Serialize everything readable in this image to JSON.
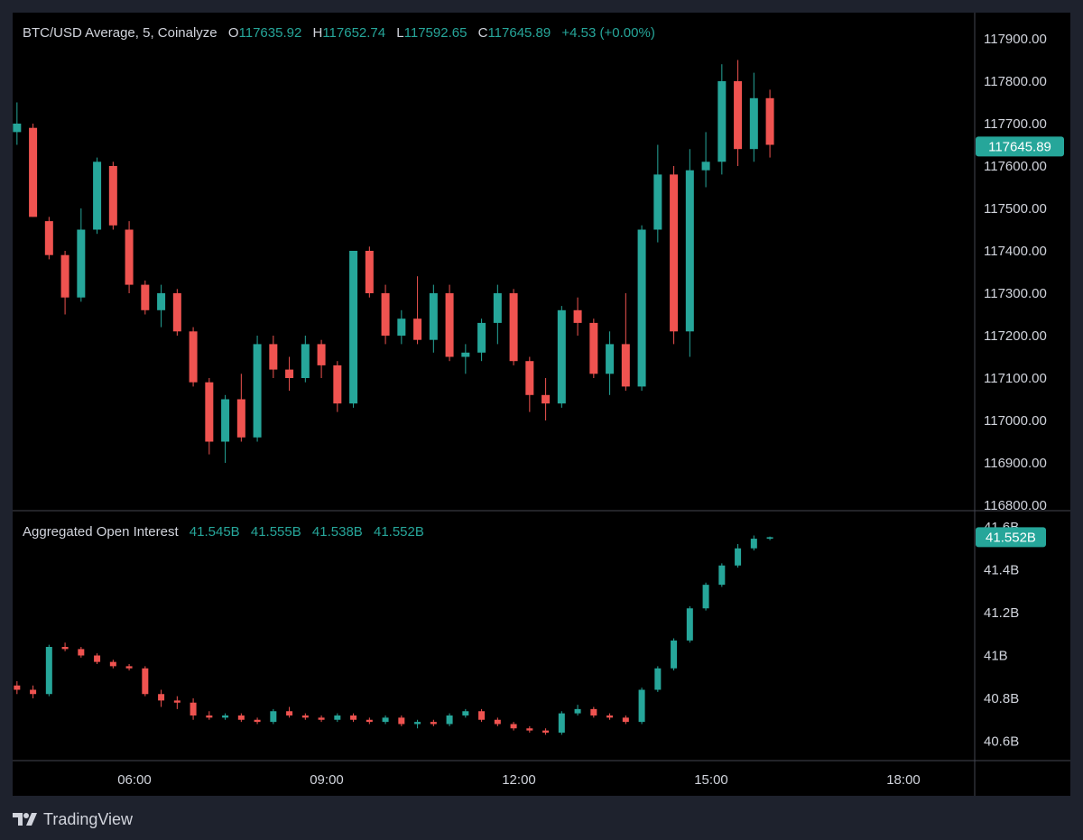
{
  "colors": {
    "background": "#000000",
    "frame": "#1e222d",
    "up": "#26a69a",
    "down": "#ef5350",
    "text": "#d1d4dc",
    "divider": "#434651",
    "badge": "#26a69a"
  },
  "price_legend": {
    "title": "BTC/USD Average, 5, Coinalyze",
    "o_label": "O",
    "o_value": "117635.92",
    "h_label": "H",
    "h_value": "117652.74",
    "l_label": "L",
    "l_value": "117592.65",
    "c_label": "C",
    "c_value": "117645.89",
    "change": "+4.53 (+0.00%)"
  },
  "oi_legend": {
    "title": "Aggregated Open Interest",
    "v1": "41.545B",
    "v2": "41.555B",
    "v3": "41.538B",
    "v4": "41.552B"
  },
  "price_badge": "117645.89",
  "oi_badge": "41.552B",
  "footer": {
    "brand": "TradingView",
    "logo_icon": "tradingview-logo-icon"
  },
  "chart_data": [
    {
      "type": "candlestick",
      "name": "BTC/USD Average, 5, Coinalyze",
      "y_ticks": [
        "117900.00",
        "117800.00",
        "117700.00",
        "117600.00",
        "117500.00",
        "117400.00",
        "117300.00",
        "117200.00",
        "117100.00",
        "117000.00",
        "116900.00",
        "116800.00"
      ],
      "ylim": [
        116800,
        117950
      ],
      "x_ticks": [
        "06:00",
        "09:00",
        "12:00",
        "15:00",
        "18:00"
      ],
      "x_tick_hours": [
        6,
        9,
        12,
        15,
        18
      ],
      "last_value": 117645.89,
      "candles": [
        {
          "t": "04:10",
          "o": 117680,
          "h": 117750,
          "l": 117650,
          "c": 117700
        },
        {
          "t": "04:25",
          "o": 117690,
          "h": 117700,
          "l": 117480,
          "c": 117480
        },
        {
          "t": "04:40",
          "o": 117470,
          "h": 117480,
          "l": 117380,
          "c": 117390
        },
        {
          "t": "04:55",
          "o": 117390,
          "h": 117400,
          "l": 117250,
          "c": 117290
        },
        {
          "t": "05:10",
          "o": 117290,
          "h": 117500,
          "l": 117280,
          "c": 117450
        },
        {
          "t": "05:25",
          "o": 117450,
          "h": 117620,
          "l": 117440,
          "c": 117610
        },
        {
          "t": "05:40",
          "o": 117600,
          "h": 117610,
          "l": 117450,
          "c": 117460
        },
        {
          "t": "05:55",
          "o": 117450,
          "h": 117470,
          "l": 117300,
          "c": 117320
        },
        {
          "t": "06:10",
          "o": 117320,
          "h": 117330,
          "l": 117250,
          "c": 117260
        },
        {
          "t": "06:25",
          "o": 117260,
          "h": 117320,
          "l": 117220,
          "c": 117300
        },
        {
          "t": "06:40",
          "o": 117300,
          "h": 117310,
          "l": 117200,
          "c": 117210
        },
        {
          "t": "06:55",
          "o": 117210,
          "h": 117220,
          "l": 117080,
          "c": 117090
        },
        {
          "t": "07:10",
          "o": 117090,
          "h": 117100,
          "l": 116920,
          "c": 116950
        },
        {
          "t": "07:25",
          "o": 116950,
          "h": 117060,
          "l": 116900,
          "c": 117050
        },
        {
          "t": "07:40",
          "o": 117050,
          "h": 117110,
          "l": 116950,
          "c": 116960
        },
        {
          "t": "07:55",
          "o": 116960,
          "h": 117200,
          "l": 116950,
          "c": 117180
        },
        {
          "t": "08:10",
          "o": 117180,
          "h": 117200,
          "l": 117100,
          "c": 117120
        },
        {
          "t": "08:25",
          "o": 117120,
          "h": 117150,
          "l": 117070,
          "c": 117100
        },
        {
          "t": "08:40",
          "o": 117100,
          "h": 117200,
          "l": 117090,
          "c": 117180
        },
        {
          "t": "08:55",
          "o": 117180,
          "h": 117190,
          "l": 117100,
          "c": 117130
        },
        {
          "t": "09:10",
          "o": 117130,
          "h": 117140,
          "l": 117020,
          "c": 117040
        },
        {
          "t": "09:25",
          "o": 117040,
          "h": 117400,
          "l": 117030,
          "c": 117400
        },
        {
          "t": "09:40",
          "o": 117400,
          "h": 117410,
          "l": 117290,
          "c": 117300
        },
        {
          "t": "09:55",
          "o": 117300,
          "h": 117320,
          "l": 117180,
          "c": 117200
        },
        {
          "t": "10:10",
          "o": 117200,
          "h": 117260,
          "l": 117180,
          "c": 117240
        },
        {
          "t": "10:25",
          "o": 117240,
          "h": 117340,
          "l": 117180,
          "c": 117190
        },
        {
          "t": "10:40",
          "o": 117190,
          "h": 117320,
          "l": 117160,
          "c": 117300
        },
        {
          "t": "10:55",
          "o": 117300,
          "h": 117320,
          "l": 117140,
          "c": 117150
        },
        {
          "t": "11:10",
          "o": 117150,
          "h": 117180,
          "l": 117110,
          "c": 117160
        },
        {
          "t": "11:25",
          "o": 117160,
          "h": 117240,
          "l": 117140,
          "c": 117230
        },
        {
          "t": "11:40",
          "o": 117230,
          "h": 117320,
          "l": 117180,
          "c": 117300
        },
        {
          "t": "11:55",
          "o": 117300,
          "h": 117310,
          "l": 117130,
          "c": 117140
        },
        {
          "t": "12:10",
          "o": 117140,
          "h": 117150,
          "l": 117020,
          "c": 117060
        },
        {
          "t": "12:25",
          "o": 117060,
          "h": 117100,
          "l": 117000,
          "c": 117040
        },
        {
          "t": "12:40",
          "o": 117040,
          "h": 117270,
          "l": 117030,
          "c": 117260
        },
        {
          "t": "12:55",
          "o": 117260,
          "h": 117290,
          "l": 117200,
          "c": 117230
        },
        {
          "t": "13:10",
          "o": 117230,
          "h": 117240,
          "l": 117100,
          "c": 117110
        },
        {
          "t": "13:25",
          "o": 117110,
          "h": 117210,
          "l": 117060,
          "c": 117180
        },
        {
          "t": "13:40",
          "o": 117180,
          "h": 117300,
          "l": 117070,
          "c": 117080
        },
        {
          "t": "13:55",
          "o": 117080,
          "h": 117460,
          "l": 117070,
          "c": 117450
        },
        {
          "t": "14:10",
          "o": 117450,
          "h": 117650,
          "l": 117420,
          "c": 117580
        },
        {
          "t": "14:25",
          "o": 117580,
          "h": 117600,
          "l": 117180,
          "c": 117210
        },
        {
          "t": "14:40",
          "o": 117210,
          "h": 117640,
          "l": 117150,
          "c": 117590
        },
        {
          "t": "14:55",
          "o": 117590,
          "h": 117680,
          "l": 117550,
          "c": 117610
        },
        {
          "t": "15:10",
          "o": 117610,
          "h": 117840,
          "l": 117580,
          "c": 117800
        },
        {
          "t": "15:25",
          "o": 117800,
          "h": 117850,
          "l": 117600,
          "c": 117640
        },
        {
          "t": "15:40",
          "o": 117640,
          "h": 117820,
          "l": 117610,
          "c": 117760
        },
        {
          "t": "15:55",
          "o": 117760,
          "h": 117780,
          "l": 117620,
          "c": 117650
        }
      ]
    },
    {
      "type": "candlestick",
      "name": "Aggregated Open Interest",
      "y_ticks": [
        "41.6B",
        "41.4B",
        "41.2B",
        "41B",
        "40.8B",
        "40.6B"
      ],
      "ylim": [
        40.53,
        41.63
      ],
      "last_value": 41.552,
      "candles": [
        {
          "t": "04:10",
          "o": 40.86,
          "h": 40.88,
          "l": 40.82,
          "c": 40.84
        },
        {
          "t": "04:25",
          "o": 40.84,
          "h": 40.86,
          "l": 40.8,
          "c": 40.82
        },
        {
          "t": "04:40",
          "o": 40.82,
          "h": 41.05,
          "l": 40.81,
          "c": 41.04
        },
        {
          "t": "04:55",
          "o": 41.04,
          "h": 41.06,
          "l": 41.02,
          "c": 41.03
        },
        {
          "t": "05:10",
          "o": 41.03,
          "h": 41.04,
          "l": 40.99,
          "c": 41.0
        },
        {
          "t": "05:25",
          "o": 41.0,
          "h": 41.01,
          "l": 40.96,
          "c": 40.97
        },
        {
          "t": "05:40",
          "o": 40.97,
          "h": 40.98,
          "l": 40.94,
          "c": 40.95
        },
        {
          "t": "05:55",
          "o": 40.95,
          "h": 40.96,
          "l": 40.93,
          "c": 40.94
        },
        {
          "t": "06:10",
          "o": 40.94,
          "h": 40.95,
          "l": 40.81,
          "c": 40.82
        },
        {
          "t": "06:25",
          "o": 40.82,
          "h": 40.84,
          "l": 40.76,
          "c": 40.79
        },
        {
          "t": "06:40",
          "o": 40.79,
          "h": 40.81,
          "l": 40.75,
          "c": 40.78
        },
        {
          "t": "06:55",
          "o": 40.78,
          "h": 40.8,
          "l": 40.7,
          "c": 40.72
        },
        {
          "t": "07:10",
          "o": 40.72,
          "h": 40.74,
          "l": 40.7,
          "c": 40.71
        },
        {
          "t": "07:25",
          "o": 40.71,
          "h": 40.73,
          "l": 40.7,
          "c": 40.72
        },
        {
          "t": "07:40",
          "o": 40.72,
          "h": 40.73,
          "l": 40.69,
          "c": 40.7
        },
        {
          "t": "07:55",
          "o": 40.7,
          "h": 40.71,
          "l": 40.68,
          "c": 40.69
        },
        {
          "t": "08:10",
          "o": 40.69,
          "h": 40.75,
          "l": 40.68,
          "c": 40.74
        },
        {
          "t": "08:25",
          "o": 40.74,
          "h": 40.76,
          "l": 40.71,
          "c": 40.72
        },
        {
          "t": "08:40",
          "o": 40.72,
          "h": 40.73,
          "l": 40.7,
          "c": 40.71
        },
        {
          "t": "08:55",
          "o": 40.71,
          "h": 40.72,
          "l": 40.69,
          "c": 40.7
        },
        {
          "t": "09:10",
          "o": 40.7,
          "h": 40.73,
          "l": 40.69,
          "c": 40.72
        },
        {
          "t": "09:25",
          "o": 40.72,
          "h": 40.73,
          "l": 40.69,
          "c": 40.7
        },
        {
          "t": "09:40",
          "o": 40.7,
          "h": 40.71,
          "l": 40.68,
          "c": 40.69
        },
        {
          "t": "09:55",
          "o": 40.69,
          "h": 40.72,
          "l": 40.68,
          "c": 40.71
        },
        {
          "t": "10:10",
          "o": 40.71,
          "h": 40.72,
          "l": 40.67,
          "c": 40.68
        },
        {
          "t": "10:25",
          "o": 40.68,
          "h": 40.7,
          "l": 40.66,
          "c": 40.69
        },
        {
          "t": "10:40",
          "o": 40.69,
          "h": 40.7,
          "l": 40.67,
          "c": 40.68
        },
        {
          "t": "10:55",
          "o": 40.68,
          "h": 40.73,
          "l": 40.67,
          "c": 40.72
        },
        {
          "t": "11:10",
          "o": 40.72,
          "h": 40.75,
          "l": 40.71,
          "c": 40.74
        },
        {
          "t": "11:25",
          "o": 40.74,
          "h": 40.75,
          "l": 40.69,
          "c": 40.7
        },
        {
          "t": "11:40",
          "o": 40.7,
          "h": 40.71,
          "l": 40.67,
          "c": 40.68
        },
        {
          "t": "11:55",
          "o": 40.68,
          "h": 40.69,
          "l": 40.65,
          "c": 40.66
        },
        {
          "t": "12:10",
          "o": 40.66,
          "h": 40.67,
          "l": 40.64,
          "c": 40.65
        },
        {
          "t": "12:25",
          "o": 40.65,
          "h": 40.66,
          "l": 40.63,
          "c": 40.64
        },
        {
          "t": "12:40",
          "o": 40.64,
          "h": 40.74,
          "l": 40.63,
          "c": 40.73
        },
        {
          "t": "12:55",
          "o": 40.73,
          "h": 40.77,
          "l": 40.72,
          "c": 40.75
        },
        {
          "t": "13:10",
          "o": 40.75,
          "h": 40.76,
          "l": 40.71,
          "c": 40.72
        },
        {
          "t": "13:25",
          "o": 40.72,
          "h": 40.73,
          "l": 40.7,
          "c": 40.71
        },
        {
          "t": "13:40",
          "o": 40.71,
          "h": 40.72,
          "l": 40.68,
          "c": 40.69
        },
        {
          "t": "13:55",
          "o": 40.69,
          "h": 40.85,
          "l": 40.68,
          "c": 40.84
        },
        {
          "t": "14:10",
          "o": 40.84,
          "h": 40.95,
          "l": 40.83,
          "c": 40.94
        },
        {
          "t": "14:25",
          "o": 40.94,
          "h": 41.08,
          "l": 40.93,
          "c": 41.07
        },
        {
          "t": "14:40",
          "o": 41.07,
          "h": 41.23,
          "l": 41.06,
          "c": 41.22
        },
        {
          "t": "14:55",
          "o": 41.22,
          "h": 41.34,
          "l": 41.21,
          "c": 41.33
        },
        {
          "t": "15:10",
          "o": 41.33,
          "h": 41.43,
          "l": 41.32,
          "c": 41.42
        },
        {
          "t": "15:25",
          "o": 41.42,
          "h": 41.52,
          "l": 41.41,
          "c": 41.5
        },
        {
          "t": "15:40",
          "o": 41.5,
          "h": 41.56,
          "l": 41.49,
          "c": 41.545
        },
        {
          "t": "15:55",
          "o": 41.545,
          "h": 41.555,
          "l": 41.538,
          "c": 41.552
        }
      ]
    }
  ]
}
